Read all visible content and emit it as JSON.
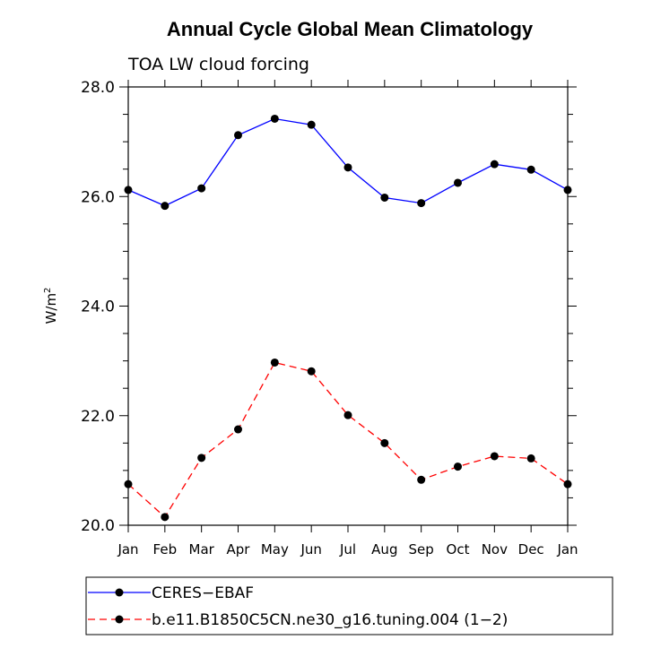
{
  "chart_data": {
    "type": "line",
    "title": "Annual Cycle Global Mean Climatology",
    "subtitle": "TOA LW cloud forcing",
    "ylabel_base": "W/m",
    "ylabel_sup": "2",
    "ylim": [
      20.0,
      28.0
    ],
    "yticks": [
      20.0,
      22.0,
      24.0,
      26.0,
      28.0
    ],
    "ytick_labels": [
      "20.0",
      "22.0",
      "24.0",
      "26.0",
      "28.0"
    ],
    "categories": [
      "Jan",
      "Feb",
      "Mar",
      "Apr",
      "May",
      "Jun",
      "Jul",
      "Aug",
      "Sep",
      "Oct",
      "Nov",
      "Dec",
      "Jan"
    ],
    "series": [
      {
        "name": "CERES−EBAF",
        "color": "#0000ff",
        "dash": "solid",
        "values": [
          26.12,
          25.83,
          26.15,
          27.12,
          27.42,
          27.31,
          26.53,
          25.98,
          25.88,
          26.25,
          26.59,
          26.49,
          26.12
        ]
      },
      {
        "name": "b.e11.B1850C5CN.ne30_g16.tuning.004 (1−2)",
        "color": "#ff0000",
        "dash": "dashed",
        "values": [
          20.75,
          20.15,
          21.23,
          21.75,
          22.97,
          22.81,
          22.01,
          21.5,
          20.83,
          21.07,
          21.26,
          21.22,
          20.75
        ]
      }
    ],
    "legend_position": "bottom",
    "grid": false
  }
}
